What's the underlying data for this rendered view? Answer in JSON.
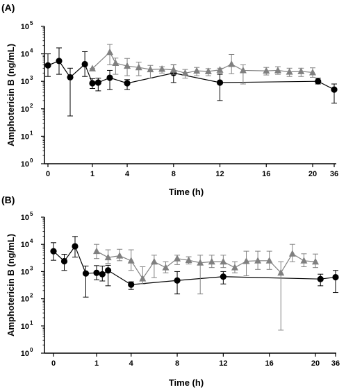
{
  "chart_data": [
    {
      "type": "scatter",
      "panel_label": "(A)",
      "xlabel": "Time (h)",
      "ylabel": "Amphotericin B (ng/mL)",
      "y_scale": "log",
      "ylim": [
        1,
        100000
      ],
      "y_ticks": [
        {
          "value": 1,
          "base": "10",
          "exp": "0"
        },
        {
          "value": 10,
          "base": "10",
          "exp": "1"
        },
        {
          "value": 100,
          "base": "10",
          "exp": "2"
        },
        {
          "value": 1000,
          "base": "10",
          "exp": "3"
        },
        {
          "value": 10000,
          "base": "10",
          "exp": "4"
        },
        {
          "value": 100000,
          "base": "10",
          "exp": "5"
        }
      ],
      "x_axis": "broken: 0–1 h expanded, 1–20 h linear, 20–36 h compressed",
      "x_ticks": [
        {
          "value": 0,
          "label": "0"
        },
        {
          "value": 1,
          "label": "1"
        },
        {
          "value": 4,
          "label": "4"
        },
        {
          "value": 8,
          "label": "8"
        },
        {
          "value": 12,
          "label": "12"
        },
        {
          "value": 16,
          "label": "16"
        },
        {
          "value": 20,
          "label": "20"
        },
        {
          "value": 36,
          "label": "36"
        }
      ],
      "series": [
        {
          "marker": "circle",
          "color": "#000000",
          "points": [
            {
              "x": 0,
              "y": 3800,
              "lo": 1500,
              "hi": 10000
            },
            {
              "x": 0.25,
              "y": 5500,
              "lo": 1800,
              "hi": 16500
            },
            {
              "x": 0.5,
              "y": 1400,
              "lo": 55,
              "hi": 3000
            },
            {
              "x": 0.83,
              "y": 4200,
              "lo": 1500,
              "hi": 12000
            },
            {
              "x": 1,
              "y": 850,
              "lo": 550,
              "hi": 1250
            },
            {
              "x": 1.5,
              "y": 900,
              "lo": 450,
              "hi": 1300
            },
            {
              "x": 2.5,
              "y": 1350,
              "lo": 500,
              "hi": 2500
            },
            {
              "x": 4,
              "y": 850,
              "lo": 500,
              "hi": 1150
            },
            {
              "x": 8,
              "y": 2000,
              "lo": 900,
              "hi": 4000
            },
            {
              "x": 12,
              "y": 900,
              "lo": 200,
              "hi": 1800
            },
            {
              "x": 24,
              "y": 1000,
              "lo": 800,
              "hi": 1300
            },
            {
              "x": 36,
              "y": 500,
              "lo": 160,
              "hi": 800
            }
          ]
        },
        {
          "marker": "triangle",
          "color": "#808080",
          "points": [
            {
              "x": 1,
              "y": 2900,
              "lo": 2900,
              "hi": 2900
            },
            {
              "x": 2.5,
              "y": 11500,
              "lo": 4000,
              "hi": 22000
            },
            {
              "x": 3,
              "y": 4600,
              "lo": 1800,
              "hi": 7000
            },
            {
              "x": 4,
              "y": 3600,
              "lo": 1600,
              "hi": 6800
            },
            {
              "x": 5,
              "y": 3200,
              "lo": 1600,
              "hi": 5000
            },
            {
              "x": 6,
              "y": 2700,
              "lo": 1300,
              "hi": 3800
            },
            {
              "x": 7,
              "y": 2800,
              "lo": 2000,
              "hi": 3400
            },
            {
              "x": 8,
              "y": 2600,
              "lo": 1800,
              "hi": 4000
            },
            {
              "x": 9,
              "y": 2000,
              "lo": 1300,
              "hi": 2700
            },
            {
              "x": 10,
              "y": 2400,
              "lo": 1600,
              "hi": 3200
            },
            {
              "x": 11,
              "y": 2300,
              "lo": 1600,
              "hi": 2900
            },
            {
              "x": 12,
              "y": 2600,
              "lo": 2000,
              "hi": 3000
            },
            {
              "x": 13,
              "y": 4200,
              "lo": 1900,
              "hi": 9500
            },
            {
              "x": 14,
              "y": 2500,
              "lo": 800,
              "hi": 4000
            },
            {
              "x": 16,
              "y": 2400,
              "lo": 1700,
              "hi": 3200
            },
            {
              "x": 17,
              "y": 2500,
              "lo": 1800,
              "hi": 3400
            },
            {
              "x": 18,
              "y": 2200,
              "lo": 1500,
              "hi": 3000
            },
            {
              "x": 19,
              "y": 2300,
              "lo": 1500,
              "hi": 3000
            },
            {
              "x": 20,
              "y": 2100,
              "lo": 1400,
              "hi": 3100
            }
          ]
        }
      ]
    },
    {
      "type": "scatter",
      "panel_label": "(B)",
      "xlabel": "Time (h)",
      "ylabel": "Amphotericin B (ng/mL)",
      "y_scale": "log",
      "ylim": [
        1,
        100000
      ],
      "y_ticks": [
        {
          "value": 1,
          "base": "10",
          "exp": "0"
        },
        {
          "value": 10,
          "base": "10",
          "exp": "1"
        },
        {
          "value": 100,
          "base": "10",
          "exp": "2"
        },
        {
          "value": 1000,
          "base": "10",
          "exp": "3"
        },
        {
          "value": 10000,
          "base": "10",
          "exp": "4"
        },
        {
          "value": 100000,
          "base": "10",
          "exp": "5"
        }
      ],
      "x_axis": "broken: 0–1 h expanded, 1–20 h linear, 20–36 h compressed",
      "x_ticks": [
        {
          "value": 0,
          "label": "0"
        },
        {
          "value": 1,
          "label": "1"
        },
        {
          "value": 4,
          "label": "4"
        },
        {
          "value": 8,
          "label": "8"
        },
        {
          "value": 12,
          "label": "12"
        },
        {
          "value": 16,
          "label": "16"
        },
        {
          "value": 20,
          "label": "20"
        },
        {
          "value": 36,
          "label": "36"
        }
      ],
      "series": [
        {
          "marker": "circle",
          "color": "#000000",
          "points": [
            {
              "x": 0,
              "y": 5600,
              "lo": 2600,
              "hi": 11500
            },
            {
              "x": 0.25,
              "y": 2400,
              "lo": 1100,
              "hi": 4300
            },
            {
              "x": 0.5,
              "y": 8500,
              "lo": 3400,
              "hi": 19500
            },
            {
              "x": 0.75,
              "y": 850,
              "lo": 115,
              "hi": 1600
            },
            {
              "x": 1,
              "y": 900,
              "lo": 500,
              "hi": 1650
            },
            {
              "x": 1.5,
              "y": 800,
              "lo": 450,
              "hi": 1600
            },
            {
              "x": 2,
              "y": 1100,
              "lo": 300,
              "hi": 1700
            },
            {
              "x": 4,
              "y": 330,
              "lo": 220,
              "hi": 420
            },
            {
              "x": 8,
              "y": 470,
              "lo": 150,
              "hi": 1000
            },
            {
              "x": 12,
              "y": 650,
              "lo": 350,
              "hi": 1000
            },
            {
              "x": 24,
              "y": 530,
              "lo": 300,
              "hi": 800
            },
            {
              "x": 36,
              "y": 620,
              "lo": 170,
              "hi": 1100
            }
          ]
        },
        {
          "marker": "triangle",
          "color": "#808080",
          "points": [
            {
              "x": 1,
              "y": 5600,
              "lo": 3000,
              "hi": 10000
            },
            {
              "x": 2,
              "y": 3300,
              "lo": 2000,
              "hi": 6300
            },
            {
              "x": 3,
              "y": 3800,
              "lo": 2500,
              "hi": 6600
            },
            {
              "x": 4,
              "y": 2500,
              "lo": 1100,
              "hi": 6300
            },
            {
              "x": 5,
              "y": 550,
              "lo": 350,
              "hi": 1500
            },
            {
              "x": 6,
              "y": 2300,
              "lo": 600,
              "hi": 4000
            },
            {
              "x": 7,
              "y": 1400,
              "lo": 900,
              "hi": 2300
            },
            {
              "x": 8,
              "y": 3000,
              "lo": 1800,
              "hi": 4000
            },
            {
              "x": 9,
              "y": 2600,
              "lo": 1900,
              "hi": 3500
            },
            {
              "x": 10,
              "y": 2100,
              "lo": 150,
              "hi": 4000
            },
            {
              "x": 11,
              "y": 2300,
              "lo": 1400,
              "hi": 4000
            },
            {
              "x": 12,
              "y": 2300,
              "lo": 1400,
              "hi": 4000
            },
            {
              "x": 13,
              "y": 1400,
              "lo": 900,
              "hi": 2300
            },
            {
              "x": 14,
              "y": 2400,
              "lo": 700,
              "hi": 5600
            },
            {
              "x": 15,
              "y": 2500,
              "lo": 1200,
              "hi": 5600
            },
            {
              "x": 16,
              "y": 2500,
              "lo": 1200,
              "hi": 5600
            },
            {
              "x": 17,
              "y": 900,
              "lo": 7,
              "hi": 2300
            },
            {
              "x": 18,
              "y": 4500,
              "lo": 2300,
              "hi": 10000
            },
            {
              "x": 19,
              "y": 2500,
              "lo": 1500,
              "hi": 4500
            },
            {
              "x": 20,
              "y": 2300,
              "lo": 1400,
              "hi": 4400
            }
          ]
        }
      ]
    }
  ]
}
